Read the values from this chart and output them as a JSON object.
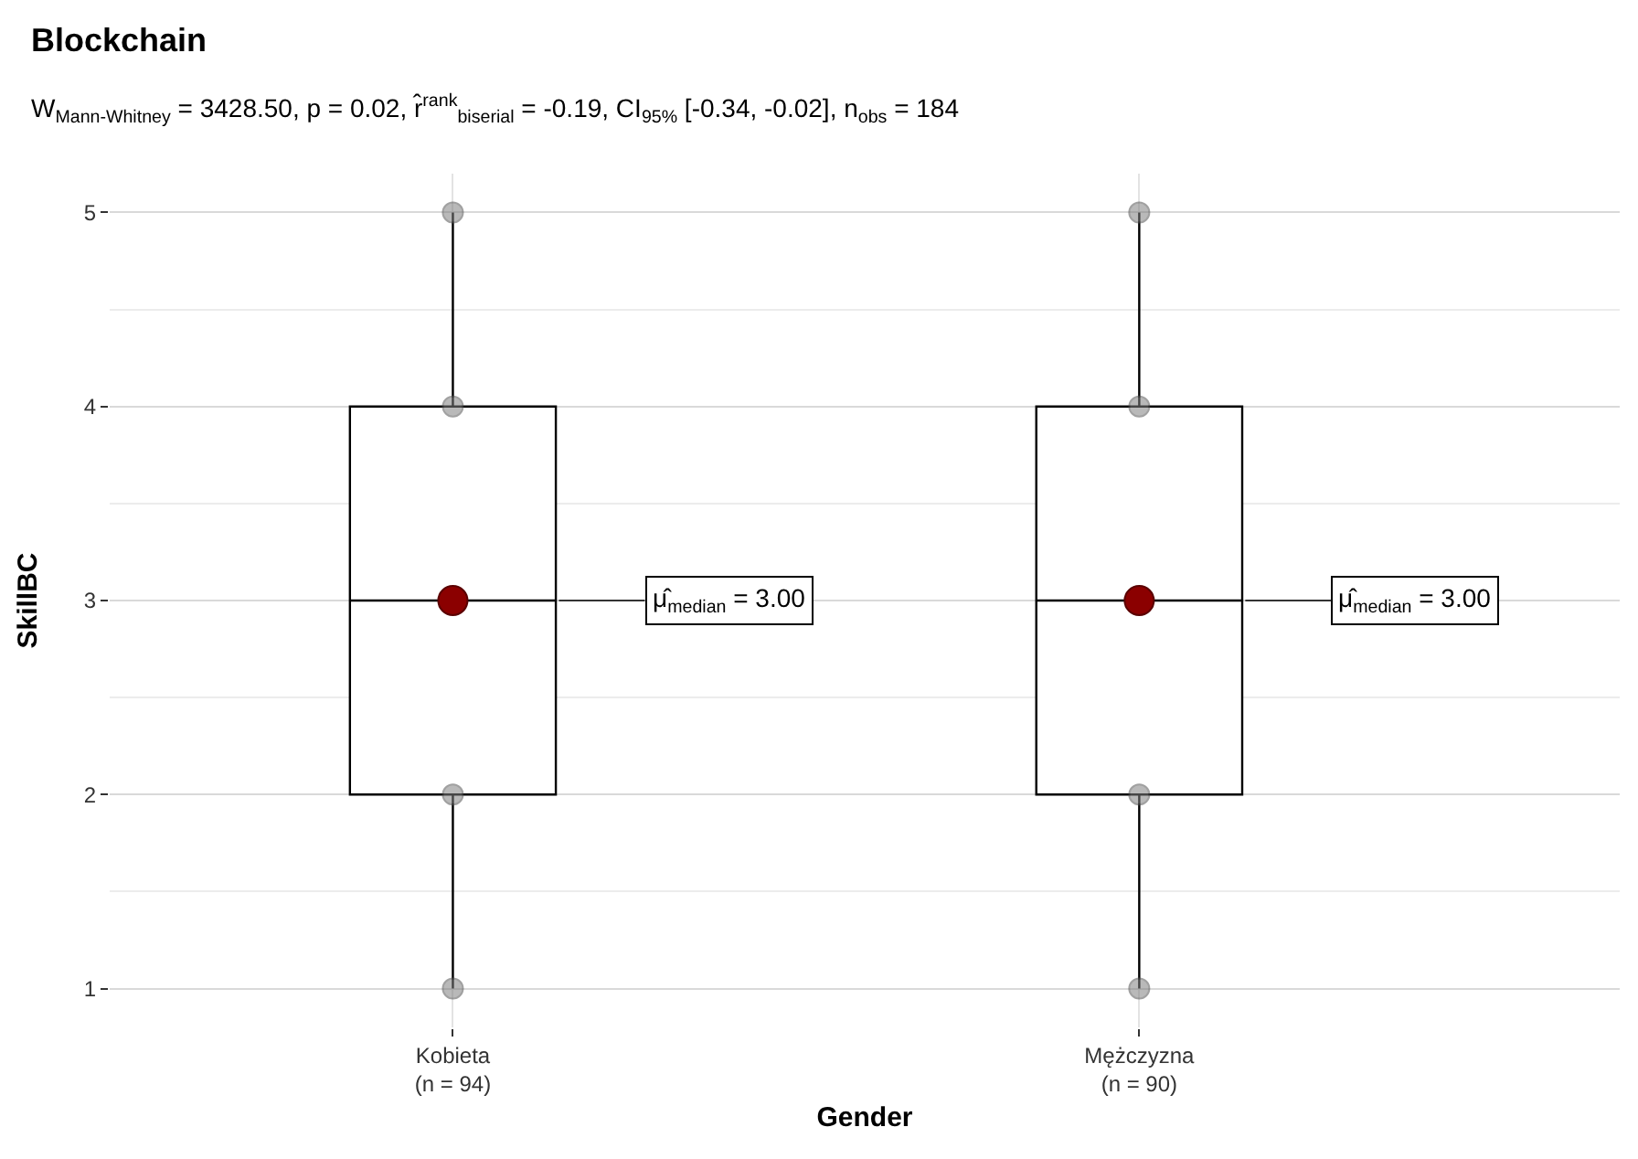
{
  "chart_data": {
    "type": "box",
    "title": "Blockchain",
    "subtitle": "W$_{Mann-Whitney}$ = 3428.50, p = 0.02, r̂$^{rank}$$_{biserial}$ = -0.19, CI$_{95%}$ [-0.34, -0.02], n$_{obs}$ = 184",
    "xlabel": "Gender",
    "ylabel": "SkillBC",
    "categories": [
      "Kobieta\n(n = 94)",
      "Mężczyzna\n(n = 90)"
    ],
    "boxes": [
      {
        "low": 1,
        "q1": 2,
        "median": 3,
        "q3": 4,
        "high": 5
      },
      {
        "low": 1,
        "q1": 2,
        "median": 3,
        "q3": 4,
        "high": 5
      }
    ],
    "series": [
      {
        "type": "scatter",
        "color": "#808080",
        "x": [
          "Kobieta\n(n = 94)",
          "Kobieta\n(n = 94)",
          "Kobieta\n(n = 94)",
          "Kobieta\n(n = 94)",
          "Mężczyzna\n(n = 90)",
          "Mężczyzna\n(n = 90)",
          "Mężczyzna\n(n = 90)",
          "Mężczyzna\n(n = 90)"
        ],
        "values": [
          1,
          2,
          4,
          5,
          1,
          2,
          4,
          5
        ]
      },
      {
        "type": "scatter",
        "color": "#8b0000",
        "x": [
          "Kobieta\n(n = 94)",
          "Mężczyzna\n(n = 90)"
        ],
        "values": [
          3,
          3
        ]
      }
    ],
    "annotations": [
      {
        "text": "μ̂$_{median}$ = 3.00",
        "x": "Kobieta\n(n = 94)",
        "y": 3
      },
      {
        "text": "μ̂$_{median}$ = 3.00",
        "x": "Mężczyzna\n(n = 90)",
        "y": 3
      }
    ],
    "ylim": [
      0.8,
      5.2
    ],
    "yticks": [
      1,
      2,
      3,
      4,
      5
    ],
    "grid": true,
    "marker": "circle"
  }
}
